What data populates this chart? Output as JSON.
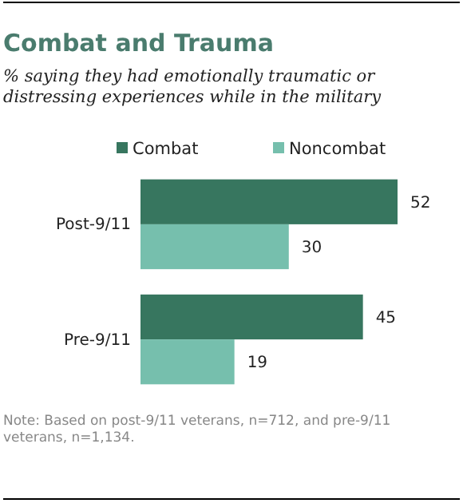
{
  "chart_data": {
    "type": "bar",
    "orientation": "horizontal",
    "title": "Combat and Trauma",
    "subtitle": "% saying they had emotionally traumatic or distressing experiences while in the military",
    "categories": [
      "Post-9/11",
      "Pre-9/11"
    ],
    "series": [
      {
        "name": "Combat",
        "color": "#37765f",
        "values": [
          52,
          45
        ]
      },
      {
        "name": "Noncombat",
        "color": "#76bfad",
        "values": [
          30,
          19
        ]
      }
    ],
    "tick_labels": "y",
    "data_labels": true,
    "legend": "top",
    "annotations": [
      "Note: Based on post-9/11 veterans, n=712, and pre-9/11 veterans, n=1,134."
    ]
  }
}
